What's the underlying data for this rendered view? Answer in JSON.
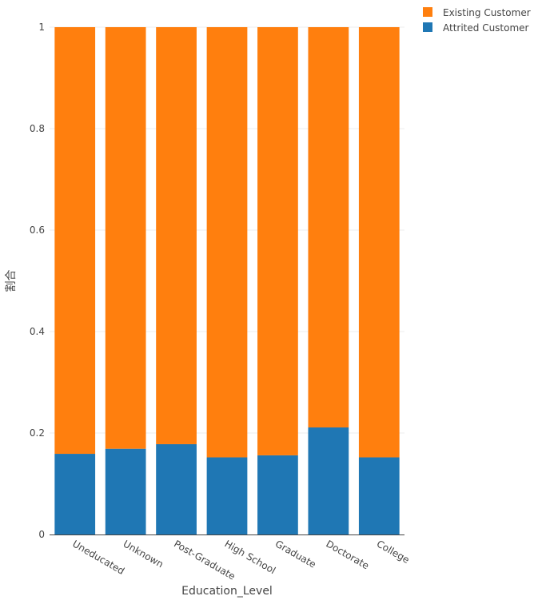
{
  "chart_data": {
    "type": "bar",
    "stacked": true,
    "categories": [
      "Uneducated",
      "Unknown",
      "Post-Graduate",
      "High School",
      "Graduate",
      "Doctorate",
      "College"
    ],
    "series": [
      {
        "name": "Attrited Customer",
        "color": "#1f77b4",
        "values": [
          0.159,
          0.169,
          0.178,
          0.152,
          0.156,
          0.211,
          0.152
        ]
      },
      {
        "name": "Existing Customer",
        "color": "#ff7f0e",
        "values": [
          0.841,
          0.831,
          0.822,
          0.848,
          0.844,
          0.789,
          0.848
        ]
      }
    ],
    "xlabel": "Education_Level",
    "ylabel": "割合",
    "ylim": [
      0,
      1
    ],
    "yticks": [
      "0",
      "0.2",
      "0.4",
      "0.6",
      "0.8",
      "1"
    ],
    "grid": true,
    "legend_position": "top-right"
  }
}
